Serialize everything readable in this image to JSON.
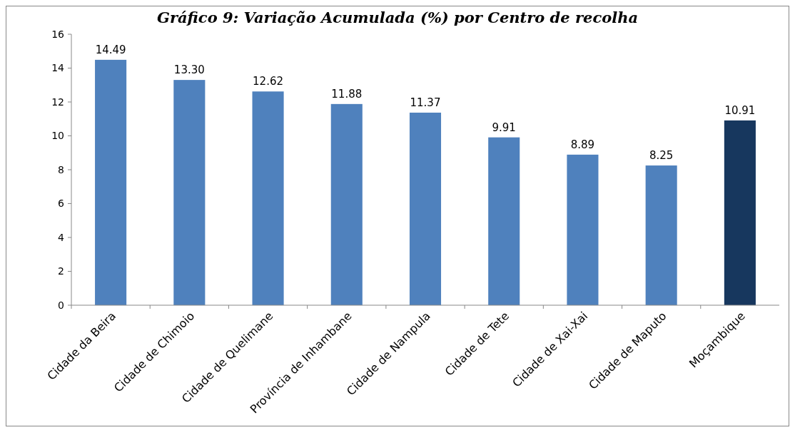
{
  "chart_data": {
    "type": "bar",
    "title": "Gráfico 9: Variação Acumulada (%) por Centro de recolha",
    "categories": [
      "Cidade da Beira",
      "Cidade de Chimoio",
      "Cidade de Quelimane",
      "Província de Inhambane",
      "Cidade de Nampula",
      "Cidade de Tete",
      "Cidade de Xai-Xai",
      "Cidade de Maputo",
      "Moçambique"
    ],
    "values": [
      14.49,
      13.3,
      12.62,
      11.88,
      11.37,
      9.91,
      8.89,
      8.25,
      10.91
    ],
    "value_labels": [
      "14.49",
      "13.30",
      "12.62",
      "11.88",
      "11.37",
      "9.91",
      "8.89",
      "8.25",
      "10.91"
    ],
    "colors": [
      "#4f81bd",
      "#4f81bd",
      "#4f81bd",
      "#4f81bd",
      "#4f81bd",
      "#4f81bd",
      "#4f81bd",
      "#4f81bd",
      "#17375e"
    ],
    "ylim": [
      0,
      16
    ],
    "yticks": [
      0,
      2,
      4,
      6,
      8,
      10,
      12,
      14,
      16
    ],
    "grid": false
  }
}
